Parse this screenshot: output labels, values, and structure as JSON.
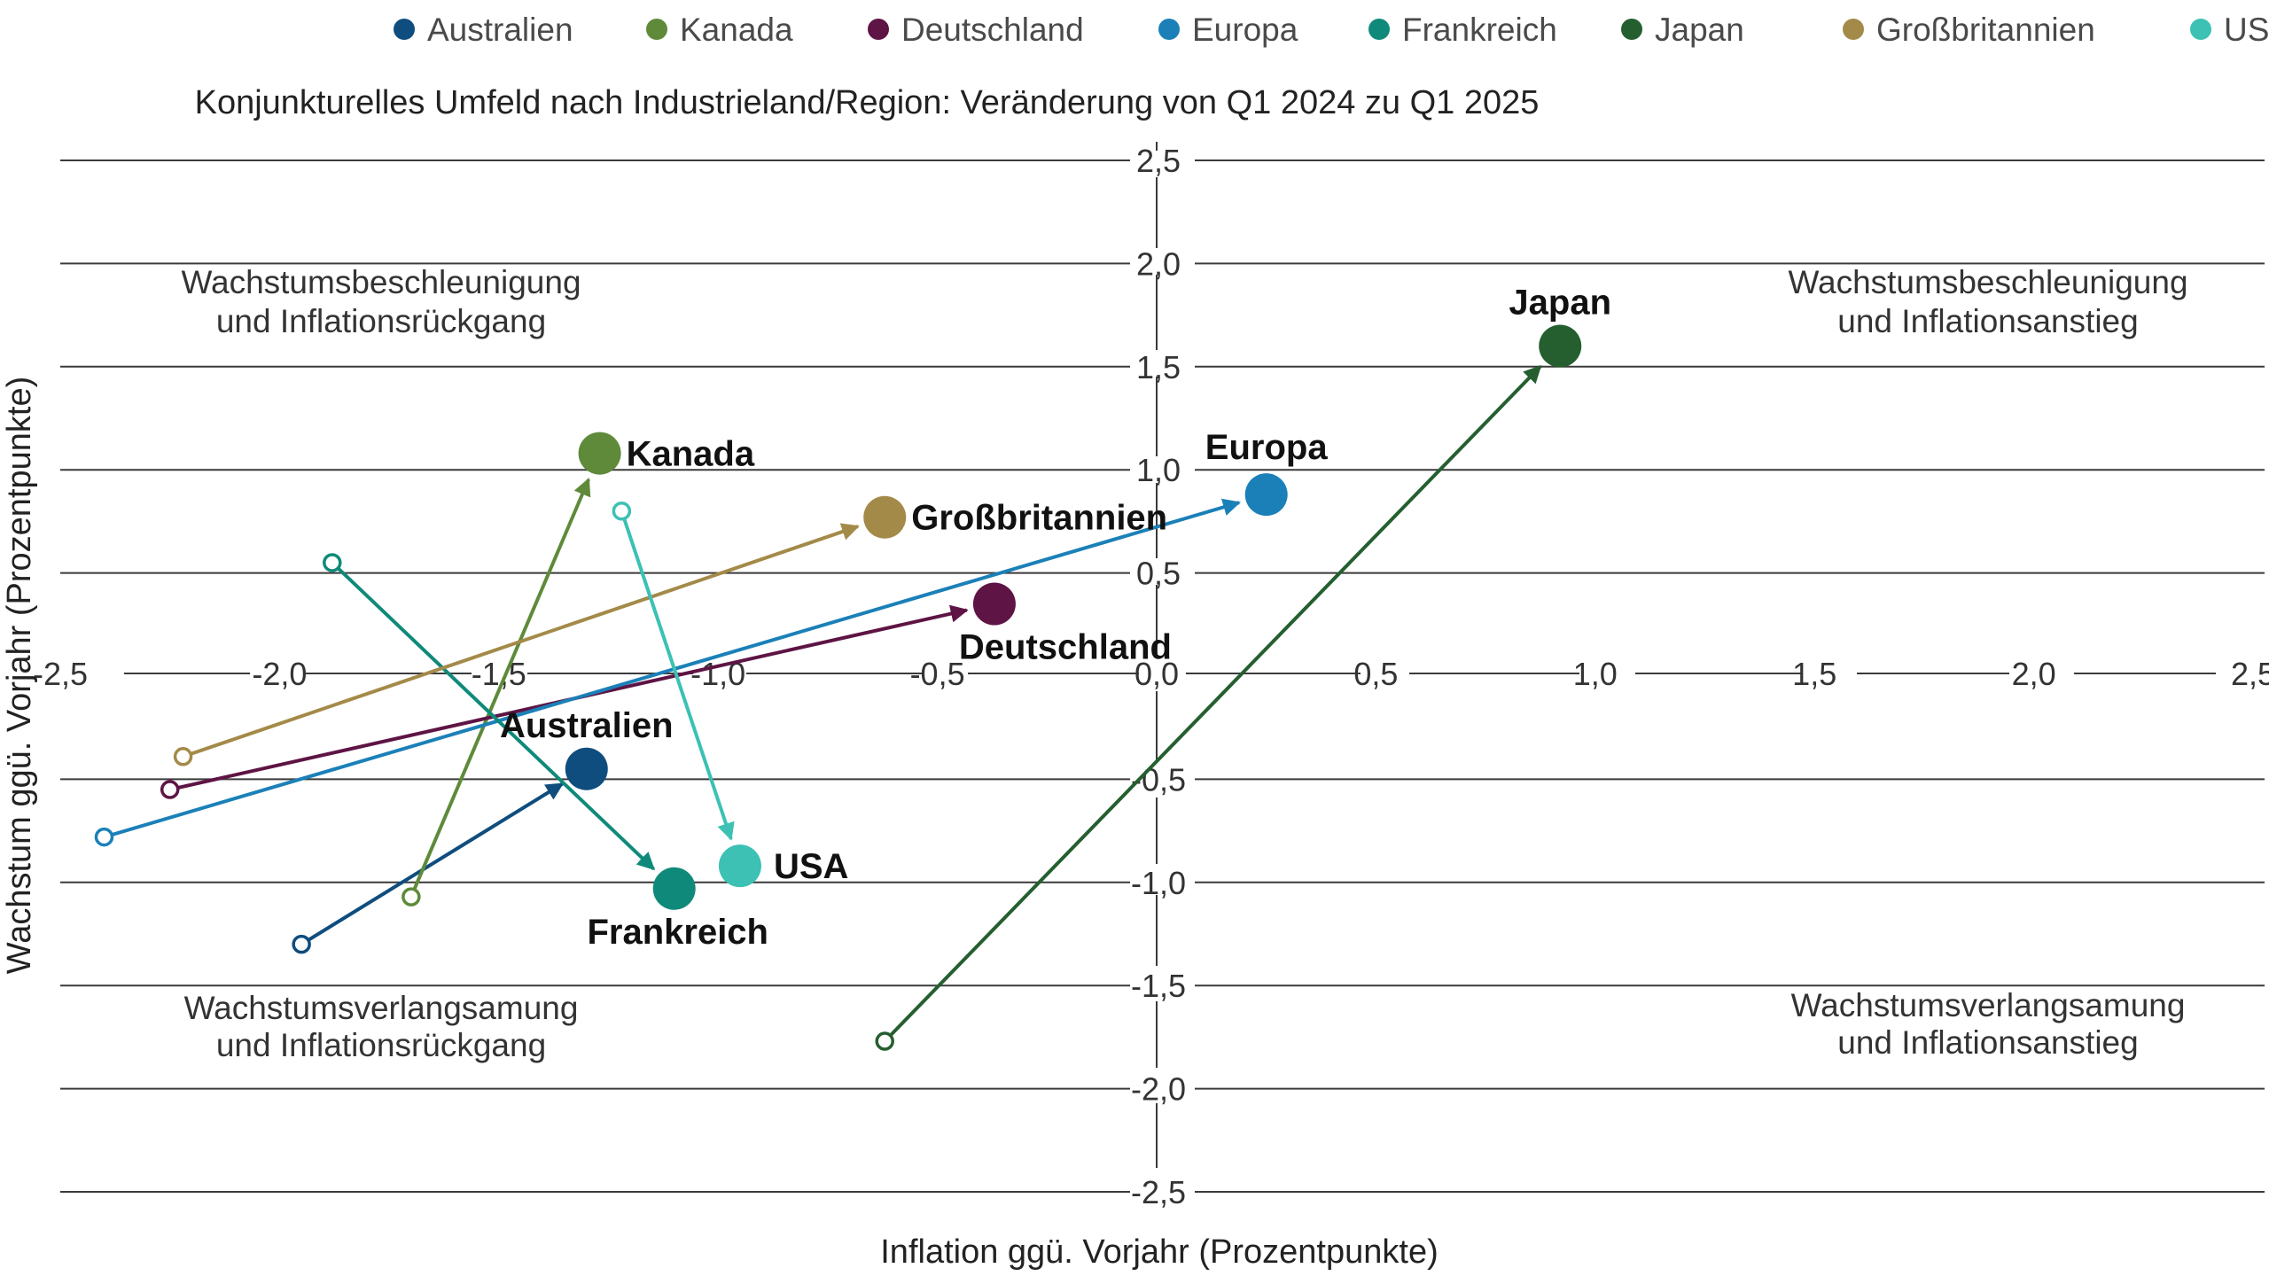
{
  "chart_data": {
    "type": "scatter",
    "title": "Konjunkturelles Umfeld nach Industrieland/Region: Veränderung von Q1 2024 zu Q1 2025",
    "xlabel": "Inflation ggü. Vorjahr (Prozentpunkte)",
    "ylabel": "Wachstum ggü. Vorjahr (Prozentpunkte)",
    "xlim": [
      -2.5,
      2.5
    ],
    "ylim": [
      -2.5,
      2.5
    ],
    "grid": true,
    "legend_position": "top",
    "x_ticks": [
      "-2,5",
      "-2,0",
      "-1,5",
      "-1,0",
      "-0,5",
      "0,0",
      "0,5",
      "1,0",
      "1,5",
      "2,0",
      "2,5"
    ],
    "y_ticks": [
      "2,5",
      "2,0",
      "1,5",
      "1,0",
      "0,5",
      "0,0",
      "-0,5",
      "-1,0",
      "-1,5",
      "-2,0",
      "-2,5"
    ],
    "quadrants": [
      {
        "position": "top-left",
        "line1": "Wachstumsbeschleunigung",
        "line2": "und Inflationsrückgang"
      },
      {
        "position": "top-right",
        "line1": "Wachstumsbeschleunigung",
        "line2": "und Inflationsanstieg"
      },
      {
        "position": "bottom-left",
        "line1": "Wachstumsverlangsamung",
        "line2": "und Inflationsrückgang"
      },
      {
        "position": "bottom-right",
        "line1": "Wachstumsverlangsamung",
        "line2": "und Inflationsanstieg"
      }
    ],
    "series": [
      {
        "name": "Australien",
        "label": "Australien",
        "color": "#0e4d7e",
        "start": [
          -1.95,
          -1.3
        ],
        "end": [
          -1.3,
          -0.45
        ]
      },
      {
        "name": "Kanada",
        "label": "Kanada",
        "color": "#5e8a3a",
        "start": [
          -1.7,
          -1.07
        ],
        "end": [
          -1.27,
          1.08
        ]
      },
      {
        "name": "Deutschland",
        "label": "Deutschland",
        "color": "#5e1445",
        "start": [
          -2.25,
          -0.55
        ],
        "end": [
          -0.37,
          0.35
        ]
      },
      {
        "name": "Europa",
        "label": "Europa",
        "color": "#1b80b8",
        "start": [
          -2.4,
          -0.78
        ],
        "end": [
          0.25,
          0.88
        ]
      },
      {
        "name": "Frankreich",
        "label": "Frankreich",
        "color": "#0f8a7a",
        "start": [
          -1.88,
          0.55
        ],
        "end": [
          -1.1,
          -1.03
        ]
      },
      {
        "name": "Japan",
        "label": "Japan",
        "color": "#255f2f",
        "start": [
          -0.62,
          -1.77
        ],
        "end": [
          0.92,
          1.6
        ]
      },
      {
        "name": "Großbritannien",
        "label": "Großbritannien",
        "color": "#a48a48",
        "start": [
          -2.22,
          -0.39
        ],
        "end": [
          -0.62,
          0.77
        ]
      },
      {
        "name": "USA",
        "label": "USA",
        "color": "#3cc1b4",
        "start": [
          -1.22,
          0.8
        ],
        "end": [
          -0.95,
          -0.92
        ]
      }
    ]
  }
}
